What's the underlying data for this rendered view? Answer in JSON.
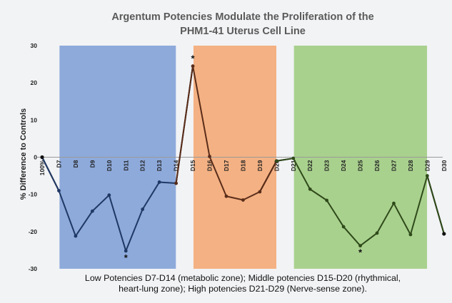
{
  "chart_data": {
    "type": "line",
    "title_line1": "Argentum Potencies Modulate the Proliferation of the",
    "title_line2": "PHM1-41 Uterus Cell Line",
    "ylabel": "% Difference to Controls",
    "ylim": [
      -30,
      30
    ],
    "yticks": [
      "-30",
      "-20",
      "-10",
      "0",
      "10",
      "20",
      "30"
    ],
    "yticks_values": [
      -30,
      -20,
      -10,
      0,
      10,
      20,
      30
    ],
    "categories": [
      "100%",
      "D7",
      "D8",
      "D9",
      "D10",
      "D11",
      "D12",
      "D13",
      "D14",
      "D15",
      "D16",
      "D17",
      "D18",
      "D19",
      "D20",
      "D21",
      "D22",
      "D23",
      "D24",
      "D25",
      "D26",
      "D27",
      "D28",
      "D29",
      "D30"
    ],
    "segments": [
      {
        "name": "low",
        "categories": [
          "100%",
          "D7",
          "D8",
          "D9",
          "D10",
          "D11",
          "D12",
          "D13",
          "D14"
        ],
        "values": [
          0,
          -9,
          -21.2,
          -14.5,
          -10.2,
          -25.2,
          -14,
          -6.7,
          -7
        ],
        "color": "#1f3864"
      },
      {
        "name": "middle",
        "categories": [
          "D14",
          "D15",
          "D16",
          "D17",
          "D18",
          "D19",
          "D20"
        ],
        "values": [
          -7,
          24.5,
          0.2,
          -10.5,
          -11.5,
          -9.3,
          -1
        ],
        "color": "#5a2d1a"
      },
      {
        "name": "high",
        "categories": [
          "D20",
          "D21",
          "D22",
          "D23",
          "D24",
          "D25",
          "D26",
          "D27",
          "D28",
          "D29",
          "D30"
        ],
        "values": [
          -1,
          -0.3,
          -8.6,
          -11.6,
          -18.7,
          -23.8,
          -20.4,
          -12.4,
          -20.8,
          -5,
          -20.6
        ],
        "color": "#2f4a1a"
      }
    ],
    "edge_segments": [
      {
        "from": "100%",
        "to": "D7",
        "values": [
          0,
          -9
        ],
        "color": "#111111"
      },
      {
        "from": "D14",
        "to": "D15",
        "values": [
          -7,
          24.5
        ],
        "color": "#111111"
      },
      {
        "from": "D19",
        "to": "D20",
        "values": [
          -9.3,
          -1
        ],
        "color": "#111111"
      },
      {
        "from": "D20",
        "to": "D21",
        "values": [
          -1,
          -0.3
        ],
        "color": "#111111"
      },
      {
        "from": "D29",
        "to": "D30",
        "values": [
          -5,
          -20.6
        ],
        "color": "#111111"
      }
    ],
    "zones": [
      {
        "name": "low",
        "from": "D7",
        "to": "D14",
        "color": "#8eaadb"
      },
      {
        "name": "middle",
        "from": "D15",
        "to": "D20",
        "color": "#f4b183"
      },
      {
        "name": "high",
        "from": "D21",
        "to": "D29",
        "color": "#a9d18e"
      }
    ],
    "significant": [
      {
        "category": "D11",
        "position": "below",
        "label": "*"
      },
      {
        "category": "D15",
        "position": "above",
        "label": "*"
      },
      {
        "category": "D25",
        "position": "below",
        "label": "*"
      }
    ],
    "caption_line1": "Low Potencies D7-D14 (metabolic zone); Middle potencies D15-D20 (rhythmical,",
    "caption_line2": "heart-lung zone); High potencies D21-D29 (Nerve-sense zone).",
    "grid": false
  }
}
